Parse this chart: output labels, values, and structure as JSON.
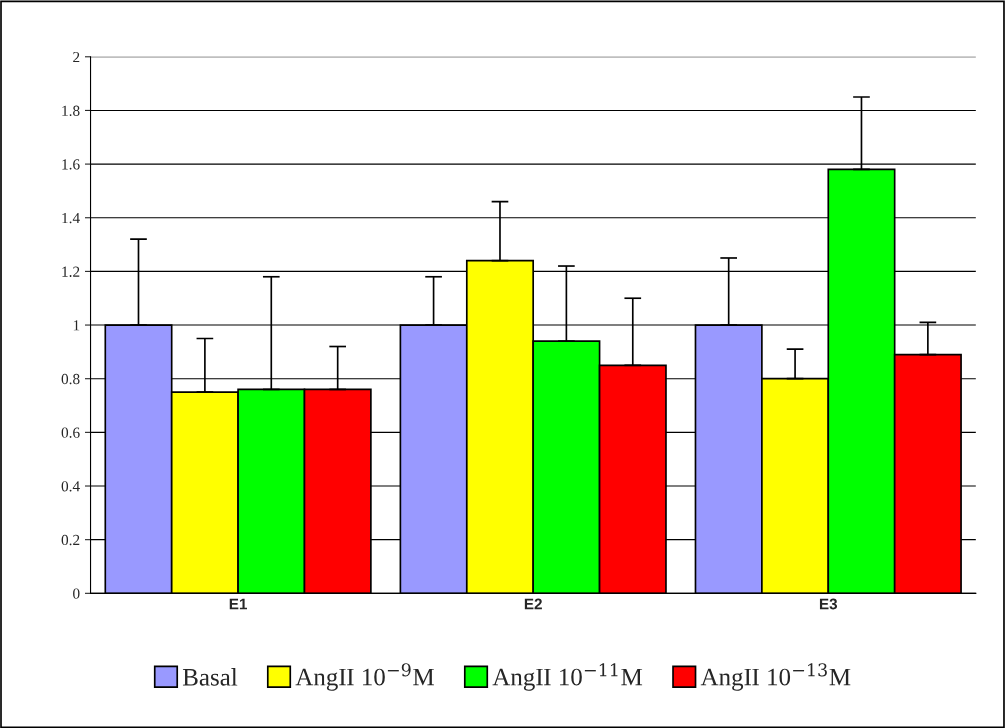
{
  "chart_data": {
    "type": "bar",
    "categories": [
      "E1",
      "E2",
      "E3"
    ],
    "series": [
      {
        "name": "Basal",
        "color": "#9999ff",
        "values": [
          1.0,
          1.0,
          1.0
        ],
        "errors": [
          [
            1.0,
            1.32
          ],
          [
            1.0,
            1.18
          ],
          [
            1.0,
            1.25
          ]
        ]
      },
      {
        "name": "AngII 10$^{−9}$M",
        "color": "#ffff00",
        "values": [
          0.75,
          1.24,
          0.8
        ],
        "errors": [
          [
            0.75,
            0.95
          ],
          [
            1.24,
            1.46
          ],
          [
            0.8,
            0.91
          ]
        ]
      },
      {
        "name": "AngII 10$^{−11}$M",
        "color": "#00ff00",
        "values": [
          0.76,
          0.94,
          1.58
        ],
        "errors": [
          [
            0.76,
            1.18
          ],
          [
            0.94,
            1.22
          ],
          [
            1.58,
            1.85
          ]
        ]
      },
      {
        "name": "AngII 10$^{−13}$M",
        "color": "#ff0000",
        "values": [
          0.76,
          0.85,
          0.89
        ],
        "errors": [
          [
            0.76,
            0.92
          ],
          [
            0.85,
            1.1
          ],
          [
            0.89,
            1.01
          ]
        ]
      }
    ],
    "ylim": [
      0,
      2
    ],
    "yticks": [
      0,
      0.2,
      0.4,
      0.6,
      0.8,
      1,
      1.2,
      1.4,
      1.6,
      1.8,
      2
    ],
    "grid": "y",
    "legend": "bottom"
  }
}
